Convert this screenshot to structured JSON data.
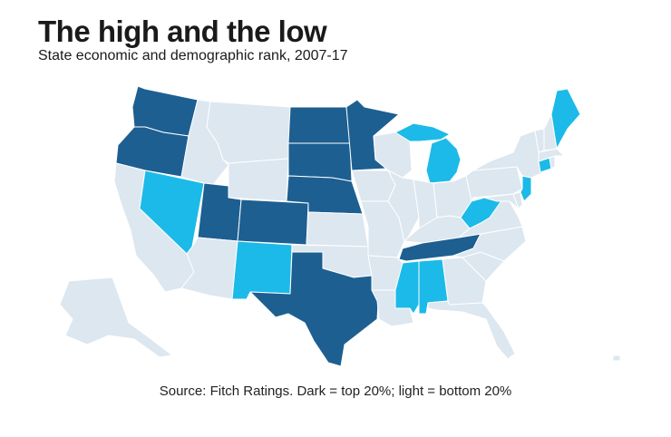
{
  "title": "The high and the low",
  "subtitle": "State economic and demographic rank, 2007-17",
  "source": "Source: Fitch Ratings. Dark = top 20%; light = bottom 20%",
  "colors": {
    "top": "#1d5f91",
    "bottom": "#1cbae8",
    "neutral": "#dce7f0",
    "border": "#ffffff"
  },
  "legend": {
    "top": {
      "label": "Dark = top 20%",
      "states": [
        "WA",
        "OR",
        "UT",
        "CO",
        "ND",
        "SD",
        "NE",
        "MN",
        "TX",
        "TN"
      ]
    },
    "bottom": {
      "label": "light = bottom 20%",
      "states": [
        "NV",
        "NM",
        "MS",
        "AL",
        "MI",
        "WV",
        "ME",
        "CT",
        "NJ"
      ]
    }
  }
}
